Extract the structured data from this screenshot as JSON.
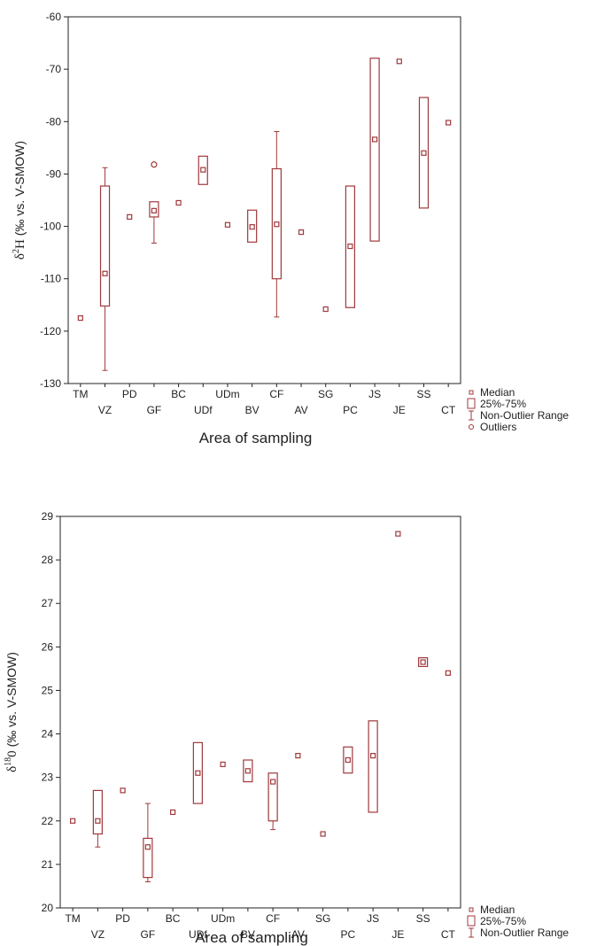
{
  "chart_data": [
    {
      "type": "box",
      "xlabel": "Area of sampling",
      "ylabel_symbol": "δ",
      "ylabel_sup": "2",
      "ylabel_main": "H",
      "ylabel_unit": " (‰ vs. V-SMOW)",
      "ylim": [
        -130,
        -60
      ],
      "yticks": [
        -60,
        -70,
        -80,
        -90,
        -100,
        -110,
        -120,
        -130
      ],
      "categories": [
        "TM",
        "VZ",
        "PD",
        "GF",
        "BC",
        "UDf",
        "UDm",
        "BV",
        "CF",
        "AV",
        "SG",
        "PC",
        "JS",
        "JE",
        "SS",
        "CT"
      ],
      "median": [
        -117.5,
        -109,
        -98.2,
        -97,
        -95.5,
        -89.2,
        -99.7,
        -100.1,
        -99.6,
        -101.1,
        -115.8,
        -103.8,
        -83.4,
        -68.5,
        -86,
        -80.2
      ],
      "q1": [
        null,
        -115.2,
        null,
        -98.2,
        null,
        -92,
        null,
        -103,
        -110,
        null,
        null,
        -115.5,
        -102.8,
        null,
        -96.5,
        null
      ],
      "q3": [
        null,
        -92.3,
        null,
        -95.3,
        null,
        -86.6,
        null,
        -96.9,
        -89,
        null,
        null,
        -92.3,
        -67.9,
        null,
        -75.4,
        null
      ],
      "whisker_low": [
        null,
        -127.5,
        null,
        -103.2,
        null,
        null,
        null,
        null,
        -117.3,
        null,
        null,
        null,
        null,
        null,
        null,
        null
      ],
      "whisker_high": [
        null,
        -88.8,
        null,
        null,
        null,
        null,
        null,
        null,
        -81.9,
        null,
        null,
        null,
        null,
        null,
        null,
        null
      ],
      "outliers": [
        [],
        [],
        [],
        [
          -88.2
        ],
        [],
        [],
        [],
        [],
        [],
        [],
        [],
        [],
        [],
        [],
        [],
        []
      ],
      "legend": [
        "Median",
        "25%-75%",
        "Non-Outlier Range",
        "Outliers"
      ],
      "legend_position": "bottom-right",
      "grid": false
    },
    {
      "type": "box",
      "xlabel": "Area of sampling",
      "ylabel_symbol": "δ",
      "ylabel_sup": "18",
      "ylabel_main": "0",
      "ylabel_unit": " (‰ vs. V-SMOW)",
      "ylim": [
        20,
        29
      ],
      "yticks": [
        29,
        28,
        27,
        26,
        25,
        24,
        23,
        22,
        21,
        20
      ],
      "categories": [
        "TM",
        "VZ",
        "PD",
        "GF",
        "BC",
        "UDf",
        "UDm",
        "BV",
        "CF",
        "AV",
        "SG",
        "PC",
        "JS",
        "JE",
        "SS",
        "CT"
      ],
      "median": [
        22,
        22,
        22.7,
        21.4,
        22.2,
        23.1,
        23.3,
        23.15,
        22.9,
        23.5,
        21.7,
        23.4,
        23.5,
        28.6,
        25.65,
        25.4
      ],
      "q1": [
        null,
        21.7,
        null,
        20.7,
        null,
        22.4,
        null,
        22.9,
        22,
        null,
        null,
        23.1,
        22.2,
        null,
        25.55,
        null
      ],
      "q3": [
        null,
        22.7,
        null,
        21.6,
        null,
        23.8,
        null,
        23.4,
        23.1,
        null,
        null,
        23.7,
        24.3,
        null,
        25.75,
        null
      ],
      "whisker_low": [
        null,
        21.4,
        null,
        20.6,
        null,
        null,
        null,
        null,
        21.8,
        null,
        null,
        null,
        null,
        null,
        null,
        null
      ],
      "whisker_high": [
        null,
        null,
        null,
        22.4,
        null,
        null,
        null,
        null,
        null,
        null,
        null,
        null,
        null,
        null,
        null,
        null
      ],
      "outliers": [
        [],
        [],
        [],
        [],
        [],
        [],
        [],
        [],
        [],
        [],
        [],
        [],
        [],
        [],
        [],
        []
      ],
      "legend": [
        "Median",
        "25%-75%",
        "Non-Outlier Range"
      ],
      "legend_position": "bottom-right",
      "grid": false
    }
  ],
  "colors": {
    "mark": "#a0393c",
    "axis": "#222222"
  }
}
